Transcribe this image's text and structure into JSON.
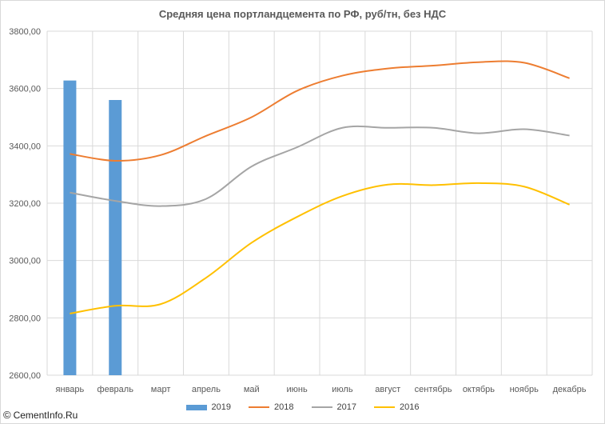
{
  "watermark": {
    "symbol": "©",
    "text": "CementInfo.Ru"
  },
  "colors": {
    "2019": "#5b9bd5",
    "2018": "#ed7d31",
    "2017": "#a5a5a5",
    "2016": "#ffc000",
    "grid": "#d9d9d9",
    "axis_text": "#595959"
  },
  "chart_data": {
    "type": "bar+line",
    "title": "Средняя цена портландцемента по РФ, руб/тн, без НДС",
    "categories": [
      "январь",
      "февраль",
      "март",
      "апрель",
      "май",
      "июнь",
      "июль",
      "август",
      "сентябрь",
      "октябрь",
      "ноябрь",
      "декабрь"
    ],
    "ylim": [
      2600,
      3800
    ],
    "yticks": [
      "2600,00",
      "2800,00",
      "3000,00",
      "3200,00",
      "3400,00",
      "3600,00",
      "3800,00"
    ],
    "grid": true,
    "legend_position": "bottom",
    "series": [
      {
        "name": "2019",
        "kind": "bar",
        "values": [
          3628,
          3560,
          null,
          null,
          null,
          null,
          null,
          null,
          null,
          null,
          null,
          null
        ]
      },
      {
        "name": "2018",
        "kind": "line",
        "values": [
          3372,
          3348,
          3368,
          3435,
          3500,
          3592,
          3645,
          3670,
          3680,
          3692,
          3690,
          3636
        ]
      },
      {
        "name": "2017",
        "kind": "line",
        "values": [
          3237,
          3208,
          3190,
          3215,
          3328,
          3395,
          3463,
          3463,
          3463,
          3444,
          3458,
          3436
        ]
      },
      {
        "name": "2016",
        "kind": "line",
        "values": [
          2815,
          2842,
          2848,
          2940,
          3062,
          3152,
          3225,
          3265,
          3263,
          3270,
          3258,
          3195
        ]
      }
    ]
  }
}
